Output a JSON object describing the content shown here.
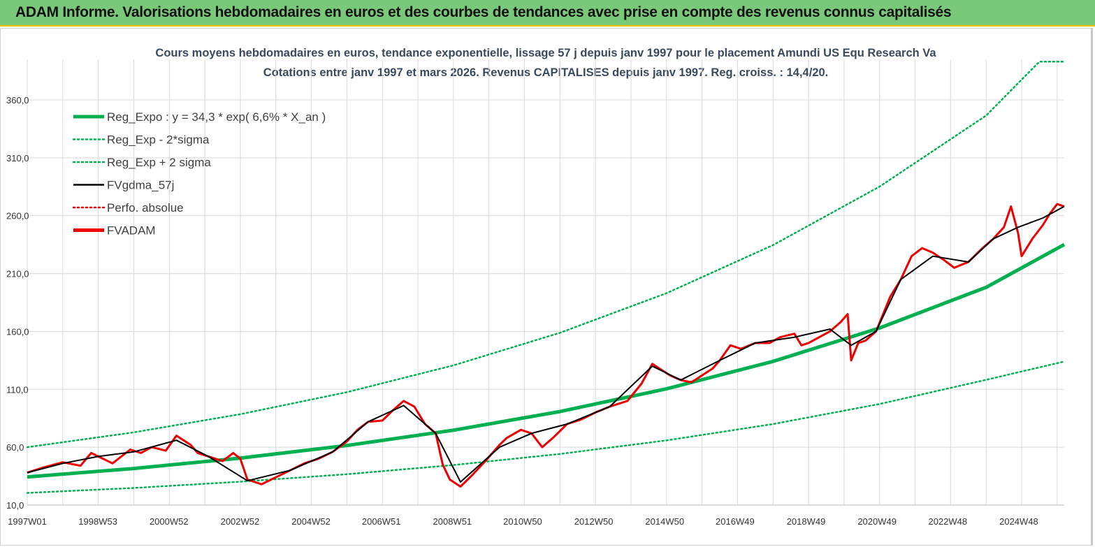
{
  "banner": {
    "title": "ADAM Informe. Valorisations hebdomadaires en euros et des courbes de tendances avec prise en compte des revenus connus capitalisés"
  },
  "chart_data": {
    "type": "line",
    "title": [
      "Cours moyens hebdomadaires en euros, tendance exponentielle, lissage 57 j depuis janv 1997  pour le placement Amundi US Equ Research Va",
      "Cotations entre janv 1997 et mars 2026. Revenus CAPITALISES  depuis janv 1997. Reg. croiss. : 14,4/20."
    ],
    "x_range": [
      1997.0,
      2026.2
    ],
    "ylim": [
      10,
      395
    ],
    "y_ticks": [
      10,
      60,
      110,
      160,
      210,
      260,
      310,
      360
    ],
    "y_tick_labels": [
      "10,0",
      "60,0",
      "110,0",
      "160,0",
      "210,0",
      "260,0",
      "310,0",
      "360,0"
    ],
    "x_ticks": [
      {
        "label": "1997W01",
        "x": 1997.0
      },
      {
        "label": "1998W53",
        "x": 1998.99
      },
      {
        "label": "2000W52",
        "x": 2000.99
      },
      {
        "label": "2002W52",
        "x": 2002.99
      },
      {
        "label": "2004W52",
        "x": 2004.99
      },
      {
        "label": "2006W51",
        "x": 2006.97
      },
      {
        "label": "2008W51",
        "x": 2008.97
      },
      {
        "label": "2010W50",
        "x": 2010.95
      },
      {
        "label": "2012W50",
        "x": 2012.95
      },
      {
        "label": "2014W50",
        "x": 2014.95
      },
      {
        "label": "2016W49",
        "x": 2016.93
      },
      {
        "label": "2018W49",
        "x": 2018.93
      },
      {
        "label": "2020W49",
        "x": 2020.93
      },
      {
        "label": "2022W48",
        "x": 2022.92
      },
      {
        "label": "2024W48",
        "x": 2024.92
      }
    ],
    "colors": {
      "reg": "#00b050",
      "band": "#00b050",
      "gdma": "#000000",
      "perfo": "#e00000",
      "fvadam": "#ee0000",
      "grid": "#d9d9d9"
    },
    "legend": [
      {
        "label": "Reg_Expo : y = 34,3 * exp( 6,6% *  X_an )",
        "color": "#00b050",
        "style": "solid-thick"
      },
      {
        "label": "Reg_Exp - 2*sigma",
        "color": "#00b050",
        "style": "dotted"
      },
      {
        "label": "Reg_Exp + 2 sigma",
        "color": "#00b050",
        "style": "dotted"
      },
      {
        "label": "FVgdma_57j",
        "color": "#000000",
        "style": "solid"
      },
      {
        "label": "Perfo. absolue",
        "color": "#e00000",
        "style": "dotted"
      },
      {
        "label": "FVADAM",
        "color": "#ee0000",
        "style": "solid-thick"
      }
    ],
    "series": [
      {
        "name": "Reg_Expo",
        "x": [
          1997,
          2000,
          2003,
          2006,
          2009,
          2012,
          2015,
          2018,
          2021,
          2024,
          2026.2
        ],
        "y": [
          34.3,
          41.6,
          50.6,
          61.5,
          74.7,
          90.8,
          110.4,
          134.1,
          163.0,
          198.1,
          235.0
        ]
      },
      {
        "name": "Reg_Exp - 2*sigma",
        "x": [
          1997,
          2000,
          2003,
          2006,
          2009,
          2012,
          2015,
          2018,
          2021,
          2024,
          2026.2
        ],
        "y": [
          20.5,
          24.8,
          30.2,
          36.7,
          44.6,
          54.2,
          65.9,
          80.0,
          97.3,
          118.2,
          134.0
        ]
      },
      {
        "name": "Reg_Exp + 2 sigma",
        "x": [
          1997,
          2000,
          2003,
          2006,
          2009,
          2012,
          2015,
          2018,
          2021,
          2024,
          2025.5,
          2026.2
        ],
        "y": [
          60.0,
          72.8,
          88.5,
          107.5,
          130.7,
          158.8,
          193.0,
          234.6,
          285.1,
          346.5,
          393.0,
          393.0
        ]
      },
      {
        "name": "FVADAM",
        "x": [
          1997.0,
          1997.4,
          1998.0,
          1998.5,
          1998.8,
          1999.0,
          1999.4,
          1999.9,
          2000.2,
          2000.5,
          2000.9,
          2001.2,
          2001.6,
          2001.8,
          2002.1,
          2002.5,
          2002.8,
          2003.0,
          2003.2,
          2003.6,
          2004.0,
          2004.4,
          2004.8,
          2005.2,
          2005.6,
          2006.0,
          2006.3,
          2006.6,
          2007.0,
          2007.3,
          2007.6,
          2007.9,
          2008.2,
          2008.5,
          2008.7,
          2008.9,
          2009.2,
          2009.5,
          2009.9,
          2010.3,
          2010.5,
          2010.9,
          2011.2,
          2011.5,
          2011.8,
          2012.2,
          2012.6,
          2013.0,
          2013.4,
          2013.9,
          2014.3,
          2014.6,
          2014.8,
          2015.1,
          2015.4,
          2015.7,
          2016.0,
          2016.3,
          2016.5,
          2016.8,
          2017.1,
          2017.5,
          2017.9,
          2018.2,
          2018.6,
          2018.8,
          2019.0,
          2019.3,
          2019.6,
          2019.9,
          2020.1,
          2020.2,
          2020.4,
          2020.6,
          2020.9,
          2021.3,
          2021.6,
          2021.9,
          2022.2,
          2022.5,
          2022.8,
          2023.1,
          2023.5,
          2023.9,
          2024.2,
          2024.5,
          2024.7,
          2024.9,
          2025.0,
          2025.3,
          2025.6,
          2025.8,
          2026.0,
          2026.2
        ],
        "y": [
          38,
          42,
          47,
          44,
          55,
          52,
          46,
          58,
          55,
          60,
          57,
          70,
          62,
          55,
          52,
          48,
          55,
          50,
          32,
          28,
          34,
          40,
          46,
          50,
          56,
          65,
          75,
          82,
          83,
          92,
          100,
          95,
          80,
          72,
          45,
          32,
          26,
          35,
          48,
          62,
          68,
          75,
          72,
          60,
          68,
          80,
          84,
          90,
          95,
          100,
          115,
          132,
          128,
          122,
          118,
          116,
          122,
          128,
          135,
          148,
          145,
          150,
          150,
          155,
          158,
          148,
          150,
          155,
          160,
          168,
          175,
          135,
          150,
          152,
          160,
          190,
          205,
          225,
          232,
          228,
          222,
          215,
          220,
          232,
          240,
          250,
          268,
          245,
          225,
          240,
          252,
          262,
          270,
          268
        ]
      },
      {
        "name": "FVgdma_57j",
        "x": [
          1997.0,
          1998.0,
          1999.0,
          2000.0,
          2001.2,
          2002.1,
          2003.2,
          2004.4,
          2005.6,
          2006.6,
          2007.6,
          2008.5,
          2009.2,
          2010.3,
          2011.2,
          2012.2,
          2013.4,
          2014.6,
          2015.4,
          2016.5,
          2017.5,
          2018.6,
          2019.6,
          2020.2,
          2020.9,
          2021.6,
          2022.5,
          2023.5,
          2024.2,
          2024.9,
          2025.6,
          2026.2
        ],
        "y": [
          38,
          46,
          52,
          56,
          66,
          52,
          31,
          40,
          56,
          82,
          96,
          72,
          30,
          60,
          72,
          80,
          95,
          130,
          118,
          135,
          150,
          155,
          162,
          148,
          160,
          205,
          225,
          220,
          240,
          250,
          258,
          268
        ]
      }
    ]
  }
}
